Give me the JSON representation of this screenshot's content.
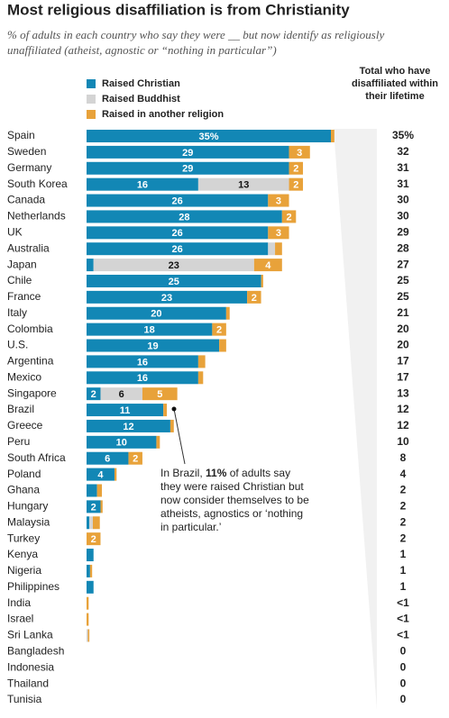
{
  "chart_data": {
    "type": "stacked-bar-horizontal",
    "title": "Most religious disaffiliation is from Christianity",
    "subtitle": "% of adults in each country who say they were __ but now identify as religiously unaffiliated (atheist, agnostic or “nothing in particular”)",
    "categories": [
      "Spain",
      "Sweden",
      "Germany",
      "South Korea",
      "Canada",
      "Netherlands",
      "UK",
      "Australia",
      "Japan",
      "Chile",
      "France",
      "Italy",
      "Colombia",
      "U.S.",
      "Argentina",
      "Mexico",
      "Singapore",
      "Brazil",
      "Greece",
      "Peru",
      "South Africa",
      "Poland",
      "Ghana",
      "Hungary",
      "Malaysia",
      "Turkey",
      "Kenya",
      "Nigeria",
      "Philippines",
      "India",
      "Israel",
      "Sri Lanka",
      "Bangladesh",
      "Indonesia",
      "Thailand",
      "Tunisia"
    ],
    "series": [
      {
        "name": "Raised Christian",
        "color": "#1287b5",
        "values": [
          35,
          29,
          29,
          16,
          26,
          28,
          26,
          26,
          1,
          25,
          23,
          20,
          18,
          19,
          16,
          16,
          2,
          11,
          12,
          10,
          6,
          4,
          1.5,
          2,
          0.4,
          0,
          1,
          0.5,
          1,
          0,
          0,
          0,
          0,
          0,
          0,
          0
        ],
        "value_labels": [
          "35%",
          "29",
          "29",
          "16",
          "26",
          "28",
          "26",
          "26",
          null,
          "25",
          "23",
          "20",
          "18",
          "19",
          "16",
          "16",
          "2",
          "11",
          "12",
          "10",
          "6",
          "4",
          null,
          "2",
          null,
          null,
          null,
          null,
          null,
          null,
          null,
          null,
          null,
          null,
          null,
          null
        ]
      },
      {
        "name": "Raised Buddhist",
        "color": "#d4d4d4",
        "values": [
          0,
          0,
          0,
          13,
          0,
          0,
          0,
          1,
          23,
          0,
          0,
          0,
          0,
          0,
          0,
          0,
          6,
          0,
          0,
          0,
          0,
          0,
          0,
          0,
          0.5,
          0,
          0,
          0,
          0,
          0,
          0,
          0.2,
          0,
          0,
          0,
          0
        ],
        "value_labels": [
          null,
          null,
          null,
          "13",
          null,
          null,
          null,
          null,
          "23",
          null,
          null,
          null,
          null,
          null,
          null,
          null,
          "6",
          null,
          null,
          null,
          null,
          null,
          null,
          null,
          null,
          null,
          null,
          null,
          null,
          null,
          null,
          null,
          null,
          null,
          null,
          null
        ]
      },
      {
        "name": "Raised in another religion",
        "color": "#e8a23a",
        "values": [
          0.5,
          3,
          2,
          2,
          3,
          2,
          3,
          1,
          4,
          0.3,
          2,
          0.5,
          2,
          1,
          1,
          0.7,
          5,
          0.5,
          0.5,
          0.5,
          2,
          0.3,
          0.7,
          0.3,
          1,
          2,
          0,
          0.3,
          0,
          0.3,
          0.3,
          0.2,
          0,
          0,
          0,
          0
        ],
        "value_labels": [
          null,
          "3",
          "2",
          "2",
          "3",
          "2",
          "3",
          null,
          "4",
          null,
          "2",
          null,
          "2",
          null,
          null,
          null,
          "5",
          null,
          null,
          null,
          "2",
          null,
          null,
          null,
          null,
          "2",
          null,
          null,
          null,
          null,
          null,
          null,
          null,
          null,
          null,
          null
        ]
      }
    ],
    "xlim": [
      0,
      35
    ],
    "totals_header": "Total who have disaffiliated within their lifetime",
    "totals": [
      "35%",
      "32",
      "31",
      "31",
      "30",
      "30",
      "29",
      "28",
      "27",
      "25",
      "25",
      "21",
      "20",
      "20",
      "17",
      "17",
      "13",
      "12",
      "12",
      "10",
      "8",
      "4",
      "2",
      "2",
      "2",
      "2",
      "1",
      "1",
      "1",
      "<1",
      "<1",
      "<1",
      "0",
      "0",
      "0",
      "0"
    ],
    "annotation": {
      "before": "In Brazil, ",
      "bold": "11%",
      "after": " of adults say they were raised Christian but now consider themselves to be atheists, agnostics or ‘nothing in particular.’"
    }
  }
}
